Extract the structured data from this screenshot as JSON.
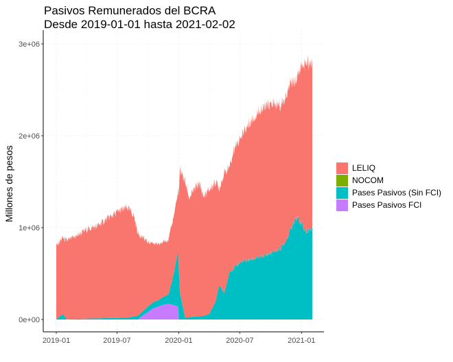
{
  "title": {
    "line1": "Pasivos Remunerados del BCRA",
    "line2": "Desde 2019-01-01 hasta 2021-02-02"
  },
  "chart_data": {
    "type": "area",
    "stacked": true,
    "title": "Pasivos Remunerados del BCRA",
    "subtitle": "Desde 2019-01-01 hasta 2021-02-02",
    "xlabel": "",
    "ylabel": "Millones de pesos",
    "x_ticks": [
      "2019-01",
      "2019-07",
      "2020-01",
      "2020-07",
      "2021-01"
    ],
    "y_ticks": [
      "0e+00",
      "1e+06",
      "2e+06",
      "3e+06"
    ],
    "ylim": [
      0,
      3000000
    ],
    "xlim": [
      "2019-01-01",
      "2021-02-02"
    ],
    "grid": true,
    "legend_position": "right",
    "series": [
      {
        "name": "Pases Pasivos FCI",
        "color": "#C77CFF",
        "x": [
          "2019-01-01",
          "2019-09-01",
          "2019-09-15",
          "2019-10-01",
          "2019-10-15",
          "2019-11-01",
          "2019-11-15",
          "2019-12-01",
          "2019-12-15",
          "2019-12-31",
          "2020-01-01",
          "2021-02-02"
        ],
        "values": [
          0,
          0,
          40000,
          80000,
          120000,
          140000,
          160000,
          170000,
          160000,
          140000,
          0,
          0
        ]
      },
      {
        "name": "Pases Pasivos (Sin FCI)",
        "color": "#00BFC4",
        "x": [
          "2019-01-01",
          "2019-01-20",
          "2019-02-01",
          "2019-04-01",
          "2019-08-01",
          "2019-09-01",
          "2019-10-01",
          "2019-11-01",
          "2019-12-01",
          "2019-12-15",
          "2019-12-31",
          "2020-01-05",
          "2020-01-20",
          "2020-02-15",
          "2020-03-15",
          "2020-04-01",
          "2020-04-20",
          "2020-05-01",
          "2020-05-15",
          "2020-06-01",
          "2020-07-01",
          "2020-08-01",
          "2020-09-01",
          "2020-10-01",
          "2020-11-01",
          "2020-11-20",
          "2020-12-01",
          "2020-12-20",
          "2021-01-01",
          "2021-01-15",
          "2021-02-02"
        ],
        "values": [
          0,
          60000,
          5000,
          10000,
          20000,
          40000,
          60000,
          70000,
          100000,
          300000,
          620000,
          280000,
          20000,
          30000,
          40000,
          60000,
          200000,
          380000,
          280000,
          520000,
          620000,
          650000,
          680000,
          720000,
          780000,
          900000,
          1000000,
          1120000,
          1050000,
          950000,
          1000000
        ]
      },
      {
        "name": "NOCOM",
        "color": "#7CAE00",
        "x": [
          "2019-01-01",
          "2021-02-02"
        ],
        "values": [
          0,
          0
        ]
      },
      {
        "name": "LELIQ",
        "color": "#F8766D",
        "x": [
          "2019-01-01",
          "2019-02-01",
          "2019-03-01",
          "2019-04-01",
          "2019-05-01",
          "2019-06-01",
          "2019-07-01",
          "2019-08-01",
          "2019-08-20",
          "2019-09-01",
          "2019-10-01",
          "2019-11-01",
          "2019-12-01",
          "2019-12-31",
          "2020-01-05",
          "2020-01-20",
          "2020-02-01",
          "2020-02-20",
          "2020-03-01",
          "2020-03-15",
          "2020-04-01",
          "2020-04-20",
          "2020-05-01",
          "2020-05-15",
          "2020-06-01",
          "2020-06-15",
          "2020-07-01",
          "2020-08-01",
          "2020-09-01",
          "2020-10-01",
          "2020-11-01",
          "2020-12-01",
          "2020-12-15",
          "2021-01-01",
          "2021-01-15",
          "2021-02-02"
        ],
        "values": [
          800000,
          850000,
          900000,
          970000,
          1000000,
          1080000,
          1150000,
          1200000,
          1100000,
          900000,
          700000,
          600000,
          600000,
          650000,
          1350000,
          1480000,
          1300000,
          1400000,
          1450000,
          1300000,
          1350000,
          1300000,
          1050000,
          1300000,
          1150000,
          1300000,
          1350000,
          1500000,
          1600000,
          1620000,
          1550000,
          1600000,
          1500000,
          1720000,
          1830000,
          1800000
        ]
      }
    ]
  },
  "legend": {
    "items": [
      {
        "label": "LELIQ",
        "color": "#F8766D"
      },
      {
        "label": "NOCOM",
        "color": "#7CAE00"
      },
      {
        "label": "Pases Pasivos (Sin FCI)",
        "color": "#00BFC4"
      },
      {
        "label": "Pases Pasivos FCI",
        "color": "#C77CFF"
      }
    ]
  }
}
